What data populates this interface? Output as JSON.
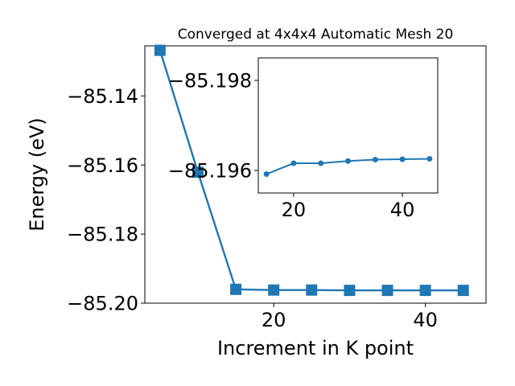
{
  "chart_data": {
    "main": {
      "type": "line",
      "title": "Converged at 4x4x4 Automatic Mesh 20",
      "xlabel": "Increment in K point",
      "ylabel": "Energy (eV)",
      "xlim": [
        3,
        48
      ],
      "ylim": [
        -85.2,
        -85.1255
      ],
      "xticks": [
        20,
        40
      ],
      "xtick_labels": [
        "20",
        "40"
      ],
      "yticks": [
        -85.14,
        -85.16,
        -85.18,
        -85.2
      ],
      "ytick_labels": [
        "−85.14",
        "−85.16",
        "−85.18",
        "−85.20"
      ],
      "marker": "square",
      "color": "#1f77b4",
      "grid": false,
      "x": [
        5,
        10,
        15,
        20,
        25,
        30,
        35,
        40,
        45
      ],
      "y": [
        -85.1268,
        -85.1621,
        -85.196,
        -85.1962,
        -85.1962,
        -85.1963,
        -85.1963,
        -85.1963,
        -85.1963
      ]
    },
    "inset": {
      "type": "line",
      "xlim": [
        13.5,
        46.5
      ],
      "ylim": [
        -85.1955,
        -85.1985
      ],
      "xticks": [
        20,
        40
      ],
      "xtick_labels": [
        "20",
        "40"
      ],
      "yticks": [
        -85.198,
        -85.196
      ],
      "ytick_labels": [
        "−85.198",
        "−85.196"
      ],
      "marker": "circle",
      "color": "#1f77b4",
      "grid": false,
      "x": [
        15,
        20,
        25,
        30,
        35,
        40,
        45
      ],
      "y": [
        -85.19592,
        -85.19616,
        -85.19616,
        -85.19621,
        -85.19624,
        -85.19625,
        -85.19626
      ]
    }
  }
}
